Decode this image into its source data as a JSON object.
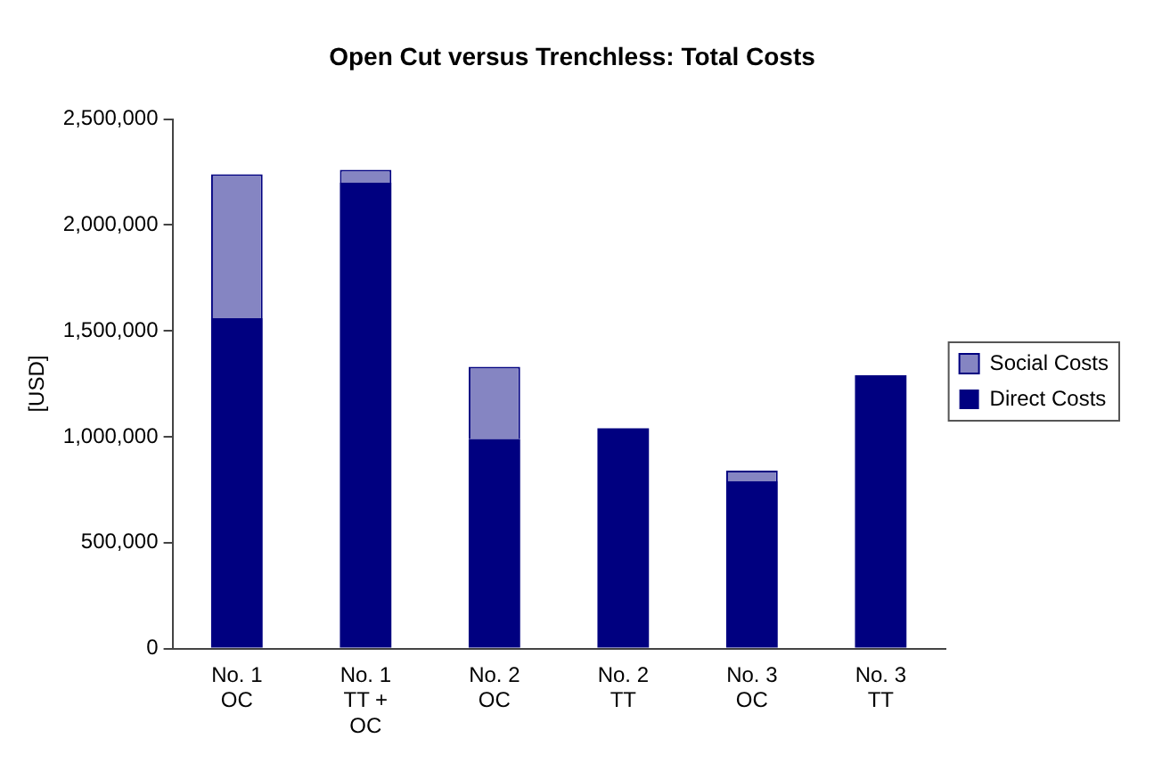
{
  "chart_data": {
    "type": "bar",
    "title": "Open Cut versus Trenchless: Total Costs",
    "ylabel": "[USD]",
    "categories": [
      "No. 1\nOC",
      "No. 1\nTT +\nOC",
      "No. 2\nOC",
      "No. 2\nTT",
      "No. 3\nOC",
      "No. 3\nTT"
    ],
    "stacked": true,
    "series": [
      {
        "name": "Direct Costs",
        "color": "#000080",
        "values": [
          1560000,
          2200000,
          990000,
          1040000,
          790000,
          1290000
        ]
      },
      {
        "name": "Social Costs",
        "color": "#8585c2",
        "values": [
          680000,
          60000,
          340000,
          0,
          50000,
          0
        ]
      }
    ],
    "ylim": [
      0,
      2500000
    ],
    "yticks": [
      {
        "value": 0,
        "label": "0"
      },
      {
        "value": 500000,
        "label": "500,000"
      },
      {
        "value": 1000000,
        "label": "1,000,000"
      },
      {
        "value": 1500000,
        "label": "1,500,000"
      },
      {
        "value": 2000000,
        "label": "2,000,000"
      },
      {
        "value": 2500000,
        "label": "2,500,000"
      }
    ],
    "grid": false,
    "legend": "right"
  }
}
